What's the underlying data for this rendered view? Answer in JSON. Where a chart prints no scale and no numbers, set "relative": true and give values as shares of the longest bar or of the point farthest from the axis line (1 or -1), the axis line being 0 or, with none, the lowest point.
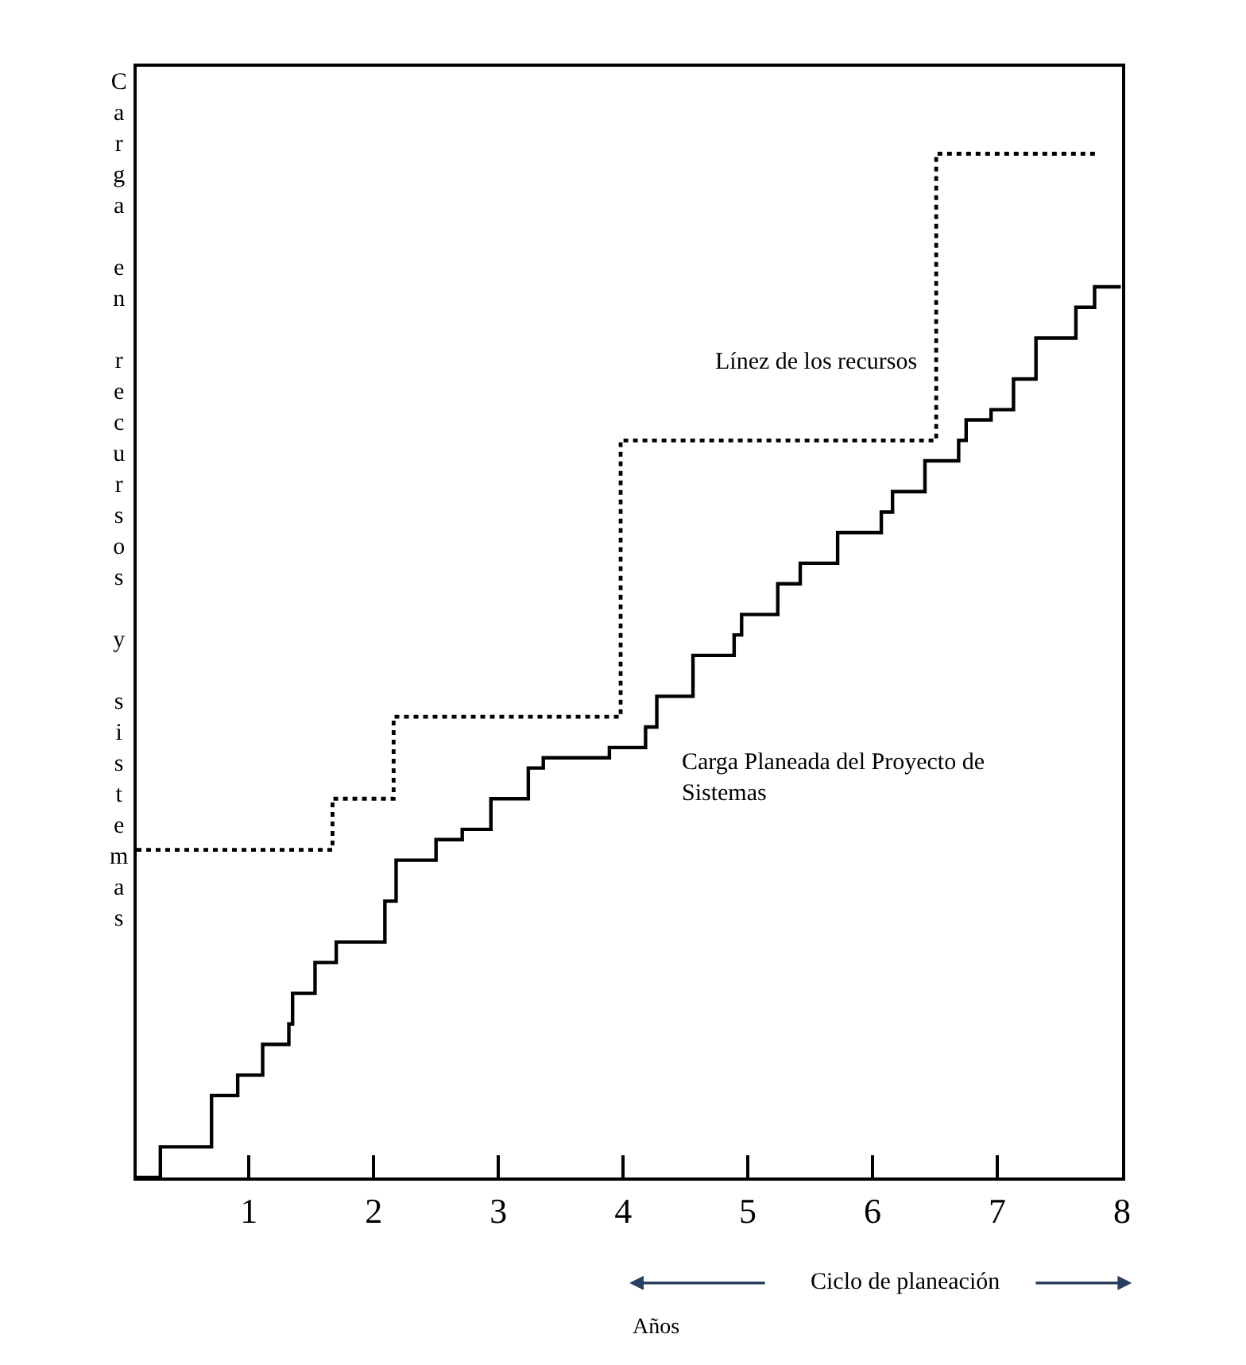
{
  "chart_data": {
    "type": "step",
    "relative": true,
    "xlabel": "Ciclo de planeación",
    "ylabel": "Carga en recursos y sistemas",
    "annotations": [
      "Años"
    ],
    "xlim": [
      0.1,
      8
    ],
    "xticks": [
      1,
      2,
      3,
      4,
      5,
      6,
      7,
      8
    ],
    "tick_labels": "x",
    "legend": false,
    "marker": "none",
    "series": [
      {
        "name": "Línez de los recursos",
        "color": "#000000",
        "line_style": "dotted",
        "x": [
          0.1,
          1.67,
          2.16,
          3.98,
          6.51,
          7.8
        ],
        "values": [
          0.32,
          0.37,
          0.45,
          0.72,
          1.0,
          1.0
        ]
      },
      {
        "name": "Carga Planeada del Proyecto de Sistemas",
        "color": "#000000",
        "line_style": "solid",
        "x": [
          0.1,
          0.29,
          0.46,
          0.7,
          0.91,
          1.11,
          1.32,
          1.35,
          1.53,
          1.7,
          1.94,
          2.09,
          2.18,
          2.47,
          2.5,
          2.71,
          2.94,
          3.24,
          3.36,
          3.65,
          3.89,
          4.18,
          4.27,
          4.56,
          4.89,
          4.95,
          5.24,
          5.42,
          5.72,
          6.07,
          6.16,
          6.33,
          6.42,
          6.69,
          6.75,
          6.95,
          7.13,
          7.31,
          7.51,
          7.63,
          7.78,
          7.99
        ],
        "values": [
          0.0,
          0.03,
          0.03,
          0.08,
          0.1,
          0.13,
          0.15,
          0.18,
          0.21,
          0.23,
          0.23,
          0.27,
          0.31,
          0.31,
          0.33,
          0.34,
          0.37,
          0.4,
          0.41,
          0.41,
          0.42,
          0.44,
          0.47,
          0.51,
          0.53,
          0.55,
          0.58,
          0.6,
          0.63,
          0.65,
          0.67,
          0.67,
          0.7,
          0.72,
          0.74,
          0.75,
          0.78,
          0.82,
          0.82,
          0.85,
          0.87,
          0.87
        ]
      }
    ]
  }
}
